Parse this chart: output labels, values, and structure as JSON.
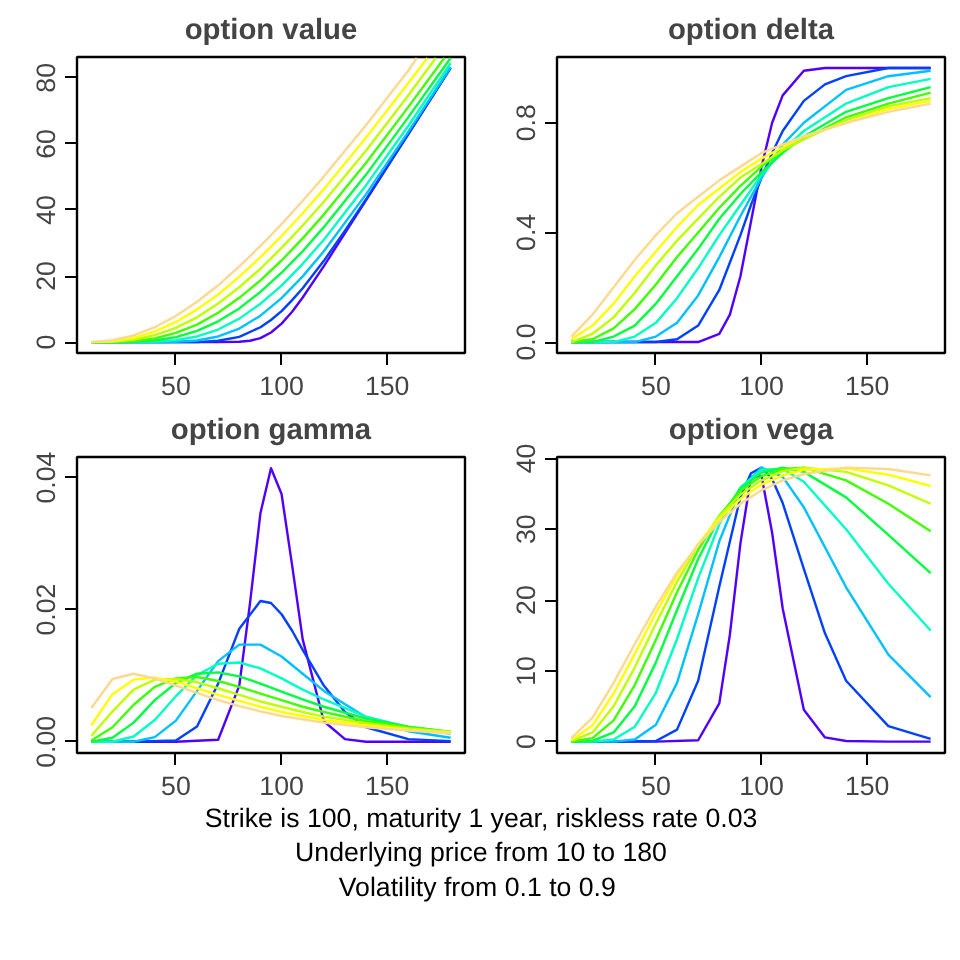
{
  "chart_data": [
    {
      "type": "line",
      "title": "option value",
      "xlim": [
        3.2,
        186.8
      ],
      "xticks": [
        50,
        100,
        150
      ],
      "ylim": [
        -3.3,
        86.3
      ],
      "yticks": [
        0,
        20,
        40,
        60,
        80
      ],
      "grid": false,
      "series": [
        {
          "color": "#5000ff",
          "x": [
            10,
            50,
            70,
            80,
            85,
            90,
            95,
            100,
            105,
            110,
            120,
            130,
            140,
            160,
            180
          ],
          "values": [
            0,
            0,
            0,
            0.1,
            0.4,
            1.2,
            2.9,
            5.6,
            9.2,
            13.5,
            23.0,
            33.0,
            43.0,
            63.0,
            83.0
          ]
        },
        {
          "color": "#0040ff",
          "x": [
            10,
            30,
            50,
            60,
            70,
            80,
            90,
            95,
            100,
            105,
            110,
            120,
            130,
            140,
            160,
            180
          ],
          "values": [
            0,
            0,
            0,
            0,
            0.4,
            1.6,
            4.5,
            6.7,
            9.4,
            12.7,
            16.3,
            24.6,
            33.7,
            43.3,
            63.0,
            83.0
          ]
        },
        {
          "color": "#00c0ff",
          "x": [
            10,
            20,
            30,
            40,
            50,
            60,
            70,
            80,
            90,
            100,
            110,
            120,
            140,
            160,
            180
          ],
          "values": [
            0,
            0,
            0,
            0,
            0.1,
            0.5,
            1.7,
            4.1,
            8.0,
            13.3,
            19.9,
            27.5,
            44.8,
            63.7,
            83.2
          ]
        },
        {
          "color": "#00ffc0",
          "x": [
            10,
            20,
            30,
            40,
            50,
            60,
            70,
            80,
            90,
            100,
            110,
            120,
            140,
            160,
            180
          ],
          "values": [
            0,
            0,
            0,
            0.1,
            0.6,
            1.7,
            3.8,
            7.1,
            11.6,
            17.1,
            23.7,
            31.0,
            47.5,
            65.5,
            84.4
          ]
        },
        {
          "color": "#00ff40",
          "x": [
            10,
            20,
            30,
            40,
            50,
            60,
            70,
            80,
            90,
            100,
            110,
            120,
            140,
            160,
            180
          ],
          "values": [
            0,
            0,
            0.1,
            0.5,
            1.5,
            3.4,
            6.3,
            10.2,
            15.2,
            21.0,
            27.5,
            34.8,
            50.7,
            68.1,
            86.0
          ]
        },
        {
          "color": "#40ff00",
          "x": [
            10,
            20,
            30,
            40,
            50,
            60,
            70,
            80,
            90,
            100,
            110,
            120,
            140,
            160,
            177
          ],
          "values": [
            0,
            0,
            0.3,
            1.1,
            2.8,
            5.3,
            8.9,
            13.4,
            18.7,
            24.7,
            31.4,
            38.6,
            54.3,
            71.2,
            86.0
          ]
        },
        {
          "color": "#c0ff00",
          "x": [
            10,
            20,
            30,
            40,
            50,
            60,
            70,
            80,
            90,
            100,
            110,
            120,
            140,
            160,
            173
          ],
          "values": [
            0,
            0.1,
            0.7,
            2.1,
            4.3,
            7.5,
            11.7,
            16.6,
            22.2,
            28.5,
            35.3,
            42.5,
            58.0,
            74.7,
            86.0
          ]
        },
        {
          "color": "#ffff00",
          "x": [
            10,
            20,
            30,
            40,
            50,
            60,
            70,
            80,
            90,
            100,
            110,
            120,
            140,
            160,
            169
          ],
          "values": [
            0,
            0.3,
            1.3,
            3.2,
            6.1,
            9.9,
            14.4,
            19.8,
            25.7,
            32.1,
            39.0,
            46.3,
            61.9,
            78.4,
            86.0
          ]
        },
        {
          "color": "#ffd890",
          "x": [
            10,
            20,
            30,
            40,
            50,
            60,
            70,
            80,
            90,
            100,
            110,
            120,
            140,
            160,
            164
          ],
          "values": [
            0,
            0.6,
            2.0,
            4.5,
            7.9,
            12.2,
            17.2,
            22.9,
            29.1,
            35.7,
            42.8,
            50.1,
            65.7,
            82.2,
            86.0
          ]
        }
      ]
    },
    {
      "type": "line",
      "title": "option delta",
      "xlim": [
        3.2,
        186.8
      ],
      "xticks": [
        50,
        100,
        150
      ],
      "ylim": [
        -0.04,
        1.04
      ],
      "yticks": [
        {
          "value": 0,
          "label": "0.0"
        },
        {
          "value": 0.4,
          "label": "0.4"
        },
        {
          "value": 0.8,
          "label": "0.8"
        }
      ],
      "grid": false,
      "series": [
        {
          "color": "#5000ff",
          "x": [
            10,
            50,
            70,
            80,
            85,
            90,
            95,
            100,
            105,
            110,
            120,
            130,
            140,
            160,
            180
          ],
          "values": [
            0,
            0,
            0,
            0.03,
            0.1,
            0.24,
            0.44,
            0.64,
            0.8,
            0.9,
            0.99,
            1,
            1,
            1,
            1
          ]
        },
        {
          "color": "#0040ff",
          "x": [
            10,
            30,
            50,
            60,
            70,
            80,
            90,
            95,
            100,
            105,
            110,
            120,
            130,
            140,
            160,
            180
          ],
          "values": [
            0,
            0,
            0,
            0.01,
            0.06,
            0.19,
            0.39,
            0.5,
            0.6,
            0.69,
            0.77,
            0.88,
            0.94,
            0.97,
            1,
            1
          ]
        },
        {
          "color": "#00c0ff",
          "x": [
            10,
            20,
            30,
            40,
            50,
            60,
            70,
            80,
            90,
            100,
            110,
            120,
            140,
            160,
            180
          ],
          "values": [
            0,
            0,
            0,
            0,
            0.02,
            0.07,
            0.17,
            0.31,
            0.46,
            0.6,
            0.72,
            0.8,
            0.92,
            0.97,
            0.99
          ]
        },
        {
          "color": "#00ffc0",
          "x": [
            10,
            20,
            30,
            40,
            50,
            60,
            70,
            80,
            90,
            100,
            110,
            120,
            140,
            160,
            180
          ],
          "values": [
            0,
            0,
            0,
            0.02,
            0.07,
            0.16,
            0.27,
            0.39,
            0.5,
            0.61,
            0.7,
            0.77,
            0.87,
            0.93,
            0.96
          ]
        },
        {
          "color": "#00ff40",
          "x": [
            10,
            20,
            30,
            40,
            50,
            60,
            70,
            80,
            90,
            100,
            110,
            120,
            140,
            160,
            180
          ],
          "values": [
            0,
            0,
            0.02,
            0.06,
            0.14,
            0.24,
            0.34,
            0.45,
            0.54,
            0.62,
            0.69,
            0.75,
            0.84,
            0.89,
            0.93
          ]
        },
        {
          "color": "#40ff00",
          "x": [
            10,
            20,
            30,
            40,
            50,
            60,
            70,
            80,
            90,
            100,
            110,
            120,
            140,
            160,
            180
          ],
          "values": [
            0,
            0.01,
            0.05,
            0.12,
            0.21,
            0.31,
            0.4,
            0.49,
            0.57,
            0.64,
            0.7,
            0.74,
            0.82,
            0.87,
            0.91
          ]
        },
        {
          "color": "#c0ff00",
          "x": [
            10,
            20,
            30,
            40,
            50,
            60,
            70,
            80,
            90,
            100,
            110,
            120,
            140,
            160,
            180
          ],
          "values": [
            0,
            0.03,
            0.09,
            0.18,
            0.28,
            0.37,
            0.45,
            0.53,
            0.6,
            0.65,
            0.7,
            0.74,
            0.81,
            0.86,
            0.89
          ]
        },
        {
          "color": "#ffff00",
          "x": [
            10,
            20,
            30,
            40,
            50,
            60,
            70,
            80,
            90,
            100,
            110,
            120,
            140,
            160,
            180
          ],
          "values": [
            0.01,
            0.06,
            0.14,
            0.24,
            0.33,
            0.42,
            0.5,
            0.56,
            0.62,
            0.67,
            0.71,
            0.75,
            0.8,
            0.85,
            0.88
          ]
        },
        {
          "color": "#ffd890",
          "x": [
            10,
            20,
            30,
            40,
            50,
            60,
            70,
            80,
            90,
            100,
            110,
            120,
            140,
            160,
            180
          ],
          "values": [
            0.02,
            0.1,
            0.2,
            0.3,
            0.39,
            0.47,
            0.53,
            0.59,
            0.64,
            0.69,
            0.72,
            0.75,
            0.8,
            0.84,
            0.87
          ]
        }
      ]
    },
    {
      "type": "line",
      "title": "option gamma",
      "xlim": [
        3.2,
        186.8
      ],
      "xticks": [
        50,
        100,
        150
      ],
      "ylim": [
        -0.0017,
        0.0431
      ],
      "yticks": [
        {
          "value": 0,
          "label": "0.00"
        },
        {
          "value": 0.02,
          "label": "0.02"
        },
        {
          "value": 0.04,
          "label": "0.04"
        }
      ],
      "grid": false,
      "series": [
        {
          "color": "#5000ff",
          "x": [
            10,
            50,
            70,
            80,
            85,
            90,
            95,
            100,
            105,
            110,
            120,
            130,
            140,
            160,
            180
          ],
          "values": [
            0,
            0,
            0.0003,
            0.0085,
            0.0208,
            0.0346,
            0.0414,
            0.0375,
            0.0267,
            0.0155,
            0.0031,
            0.0004,
            0,
            0,
            0
          ]
        },
        {
          "color": "#0040ff",
          "x": [
            10,
            30,
            50,
            60,
            70,
            80,
            90,
            95,
            100,
            105,
            110,
            120,
            130,
            140,
            160,
            180
          ],
          "values": [
            0,
            0,
            0.0002,
            0.0023,
            0.0088,
            0.0171,
            0.0213,
            0.021,
            0.0193,
            0.0168,
            0.0139,
            0.0085,
            0.0045,
            0.0022,
            0.0004,
            0.0001
          ]
        },
        {
          "color": "#00c0ff",
          "x": [
            10,
            20,
            30,
            40,
            50,
            60,
            70,
            80,
            90,
            100,
            110,
            120,
            140,
            160,
            180
          ],
          "values": [
            0,
            0,
            0,
            0.0007,
            0.0032,
            0.0077,
            0.0122,
            0.0147,
            0.0147,
            0.0129,
            0.0103,
            0.0077,
            0.0037,
            0.0016,
            0.0006
          ]
        },
        {
          "color": "#00ffc0",
          "x": [
            10,
            20,
            30,
            40,
            50,
            60,
            70,
            80,
            90,
            100,
            110,
            120,
            140,
            160,
            180
          ],
          "values": [
            0,
            0,
            0.0008,
            0.0033,
            0.0069,
            0.0101,
            0.0118,
            0.012,
            0.0111,
            0.0096,
            0.0079,
            0.0064,
            0.0038,
            0.0022,
            0.0012
          ]
        },
        {
          "color": "#00ff40",
          "x": [
            10,
            20,
            30,
            40,
            50,
            60,
            70,
            80,
            90,
            100,
            110,
            120,
            140,
            160,
            180
          ],
          "values": [
            0,
            0.0006,
            0.0029,
            0.0063,
            0.0089,
            0.0103,
            0.0105,
            0.0099,
            0.0088,
            0.0076,
            0.0064,
            0.0053,
            0.0035,
            0.0023,
            0.0015
          ]
        },
        {
          "color": "#40ff00",
          "x": [
            10,
            20,
            30,
            40,
            50,
            60,
            70,
            80,
            90,
            100,
            110,
            120,
            140,
            160,
            180
          ],
          "values": [
            0.0002,
            0.0022,
            0.0056,
            0.0083,
            0.0096,
            0.0098,
            0.0092,
            0.0083,
            0.0073,
            0.0063,
            0.0053,
            0.0045,
            0.0031,
            0.0022,
            0.0015
          ]
        },
        {
          "color": "#c0ff00",
          "x": [
            10,
            20,
            30,
            40,
            50,
            60,
            70,
            80,
            90,
            100,
            110,
            120,
            140,
            160,
            180
          ],
          "values": [
            0.0009,
            0.0046,
            0.0079,
            0.0094,
            0.0095,
            0.009,
            0.0081,
            0.0071,
            0.0061,
            0.0053,
            0.0045,
            0.0038,
            0.0028,
            0.002,
            0.0015
          ]
        },
        {
          "color": "#ffff00",
          "x": [
            10,
            20,
            30,
            40,
            50,
            60,
            70,
            80,
            90,
            100,
            110,
            120,
            140,
            160,
            180
          ],
          "values": [
            0.0025,
            0.0072,
            0.0094,
            0.0097,
            0.0091,
            0.0081,
            0.0071,
            0.0062,
            0.0053,
            0.0045,
            0.0039,
            0.0033,
            0.0025,
            0.0018,
            0.0014
          ]
        },
        {
          "color": "#ffd890",
          "x": [
            10,
            20,
            30,
            40,
            50,
            60,
            70,
            80,
            90,
            100,
            110,
            120,
            140,
            160,
            180
          ],
          "values": [
            0.0051,
            0.0095,
            0.0103,
            0.0096,
            0.0085,
            0.0074,
            0.0063,
            0.0054,
            0.0046,
            0.0039,
            0.0034,
            0.0029,
            0.0022,
            0.0017,
            0.0013
          ]
        }
      ]
    },
    {
      "type": "line",
      "title": "option vega",
      "xlim": [
        3.2,
        186.8
      ],
      "xticks": [
        50,
        100,
        150
      ],
      "ylim": [
        -1.6,
        40.2
      ],
      "yticks": [
        0,
        10,
        20,
        30,
        40
      ],
      "grid": false,
      "annotations": [
        "Strike is 100, maturity 1 year, riskless rate 0.03",
        "Underlying price from 10 to 180",
        "Volatility  from 0.1 to 0.9"
      ],
      "series": [
        {
          "color": "#5000ff",
          "x": [
            10,
            50,
            70,
            80,
            85,
            90,
            95,
            100,
            105,
            110,
            120,
            130,
            140,
            160,
            180
          ],
          "values": [
            0,
            0,
            0.2,
            5.4,
            15.1,
            28.0,
            37.4,
            37.5,
            29.5,
            18.8,
            4.5,
            0.6,
            0.1,
            0,
            0
          ]
        },
        {
          "color": "#0040ff",
          "x": [
            10,
            30,
            50,
            60,
            70,
            80,
            90,
            95,
            100,
            105,
            110,
            120,
            130,
            140,
            160,
            180
          ],
          "values": [
            0,
            0,
            0.1,
            1.7,
            8.6,
            21.9,
            34.6,
            37.9,
            38.7,
            37.1,
            33.7,
            24.4,
            15.3,
            8.6,
            2.2,
            0.4
          ]
        },
        {
          "color": "#00c0ff",
          "x": [
            10,
            20,
            30,
            40,
            50,
            60,
            70,
            80,
            90,
            100,
            110,
            120,
            140,
            160,
            180
          ],
          "values": [
            0,
            0,
            0,
            0.3,
            2.4,
            8.3,
            18.0,
            28.3,
            35.7,
            38.7,
            37.4,
            33.1,
            21.8,
            12.3,
            6.3
          ]
        },
        {
          "color": "#00ffc0",
          "x": [
            10,
            20,
            30,
            40,
            50,
            60,
            70,
            80,
            90,
            100,
            110,
            120,
            140,
            160,
            180
          ],
          "values": [
            0,
            0,
            0.3,
            2.1,
            6.9,
            14.5,
            23.1,
            30.7,
            35.9,
            38.4,
            38.5,
            36.7,
            30.0,
            22.3,
            15.7
          ]
        },
        {
          "color": "#00ff40",
          "x": [
            10,
            20,
            30,
            40,
            50,
            60,
            70,
            80,
            90,
            100,
            110,
            120,
            140,
            160,
            180
          ],
          "values": [
            0,
            0.1,
            1.3,
            5.0,
            11.2,
            18.6,
            25.8,
            31.6,
            35.7,
            38.0,
            38.7,
            38.1,
            34.5,
            29.2,
            23.8
          ]
        },
        {
          "color": "#40ff00",
          "x": [
            10,
            20,
            30,
            40,
            50,
            60,
            70,
            80,
            90,
            100,
            110,
            120,
            140,
            160,
            180
          ],
          "values": [
            0,
            0.5,
            3.0,
            8.0,
            14.4,
            21.1,
            27.1,
            31.9,
            35.4,
            37.5,
            38.5,
            38.7,
            36.9,
            33.6,
            29.7
          ]
        },
        {
          "color": "#c0ff00",
          "x": [
            10,
            20,
            30,
            40,
            50,
            60,
            70,
            80,
            90,
            100,
            110,
            120,
            140,
            160,
            180
          ],
          "values": [
            0.1,
            1.3,
            5.0,
            10.5,
            16.7,
            22.6,
            27.7,
            31.8,
            34.9,
            36.9,
            38.2,
            38.7,
            38.1,
            36.2,
            33.6
          ]
        },
        {
          "color": "#ffff00",
          "x": [
            10,
            20,
            30,
            40,
            50,
            60,
            70,
            80,
            90,
            100,
            110,
            120,
            140,
            160,
            180
          ],
          "values": [
            0.2,
            2.3,
            6.8,
            12.4,
            18.2,
            23.5,
            27.9,
            31.5,
            34.3,
            36.3,
            37.6,
            38.4,
            38.6,
            37.7,
            36.1
          ]
        },
        {
          "color": "#ffd890",
          "x": [
            10,
            20,
            30,
            40,
            50,
            60,
            70,
            80,
            90,
            100,
            110,
            120,
            140,
            160,
            180
          ],
          "values": [
            0.5,
            3.4,
            8.3,
            13.8,
            19.1,
            23.9,
            27.8,
            31.0,
            33.6,
            35.5,
            36.9,
            37.8,
            38.7,
            38.5,
            37.6
          ]
        }
      ]
    }
  ]
}
